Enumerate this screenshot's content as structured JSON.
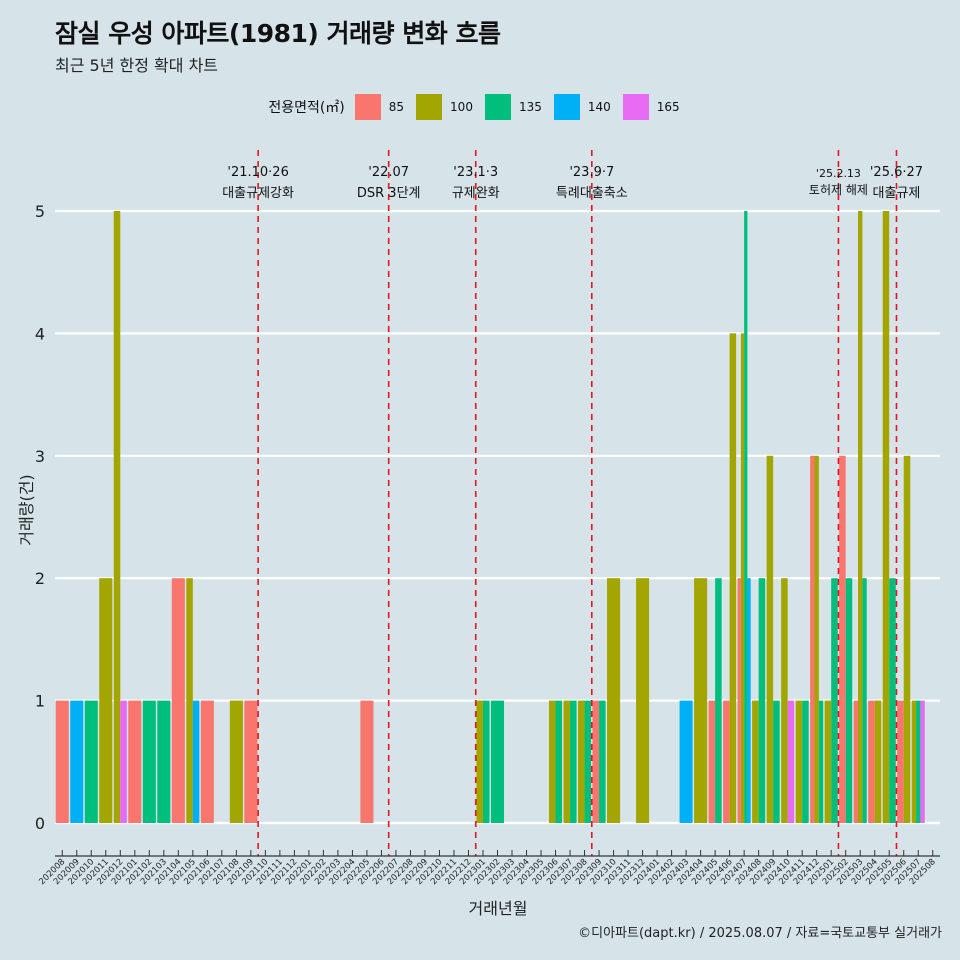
{
  "title": "잠실 우성 아파트(1981) 거래량 변화 흐름",
  "subtitle": "최근 5년 한정 확대 차트",
  "caption": "©디아파트(dapt.kr) / 2025.08.07 / 자료=국토교통부 실거래가",
  "legend": {
    "title": "전용면적(㎡)",
    "items": [
      {
        "label": "85",
        "color": "#f8766d"
      },
      {
        "label": "100",
        "color": "#a3a500"
      },
      {
        "label": "135",
        "color": "#00bf7d"
      },
      {
        "label": "140",
        "color": "#00b0f6"
      },
      {
        "label": "165",
        "color": "#e76bf3"
      }
    ]
  },
  "chart_data": {
    "type": "bar",
    "xlabel": "거래년월",
    "ylabel": "거래량(건)",
    "ylim": [
      0,
      5
    ],
    "yticks": [
      0,
      1,
      2,
      3,
      4,
      5
    ],
    "categories": [
      "202008",
      "202009",
      "202010",
      "202011",
      "202012",
      "202101",
      "202102",
      "202103",
      "202104",
      "202105",
      "202106",
      "202107",
      "202108",
      "202109",
      "202110",
      "202111",
      "202112",
      "202201",
      "202202",
      "202203",
      "202204",
      "202205",
      "202206",
      "202207",
      "202208",
      "202209",
      "202210",
      "202211",
      "202212",
      "202301",
      "202302",
      "202303",
      "202304",
      "202305",
      "202306",
      "202307",
      "202308",
      "202309",
      "202310",
      "202311",
      "202312",
      "202401",
      "202402",
      "202403",
      "202404",
      "202405",
      "202406",
      "202407",
      "202408",
      "202409",
      "202410",
      "202411",
      "202412",
      "202501",
      "202502",
      "202503",
      "202504",
      "202505",
      "202506",
      "202507",
      "202508"
    ],
    "series": [
      {
        "name": "85",
        "values": [
          1,
          0,
          0,
          0,
          0,
          1,
          0,
          0,
          2,
          0,
          1,
          0,
          0,
          1,
          0,
          0,
          0,
          0,
          0,
          0,
          0,
          1,
          0,
          0,
          0,
          0,
          0,
          0,
          0,
          0,
          0,
          0,
          0,
          0,
          0,
          0,
          0,
          1,
          0,
          0,
          0,
          0,
          0,
          0,
          0,
          1,
          1,
          2,
          0,
          0,
          0,
          0,
          3,
          0,
          3,
          1,
          1,
          0,
          1,
          0,
          0
        ]
      },
      {
        "name": "100",
        "values": [
          0,
          0,
          0,
          2,
          5,
          0,
          0,
          0,
          0,
          2,
          0,
          0,
          1,
          0,
          0,
          0,
          0,
          0,
          0,
          0,
          0,
          0,
          0,
          0,
          0,
          0,
          0,
          0,
          0,
          1,
          0,
          0,
          0,
          0,
          1,
          1,
          1,
          0,
          2,
          0,
          2,
          0,
          0,
          0,
          2,
          0,
          4,
          4,
          1,
          3,
          2,
          1,
          3,
          1,
          0,
          5,
          1,
          5,
          3,
          1,
          0
        ]
      },
      {
        "name": "135",
        "values": [
          0,
          0,
          1,
          0,
          0,
          0,
          1,
          1,
          0,
          0,
          0,
          0,
          0,
          0,
          0,
          0,
          0,
          0,
          0,
          0,
          0,
          0,
          0,
          0,
          0,
          0,
          0,
          0,
          0,
          1,
          1,
          0,
          0,
          0,
          1,
          1,
          1,
          1,
          0,
          0,
          0,
          0,
          0,
          0,
          0,
          2,
          0,
          5,
          2,
          1,
          0,
          1,
          1,
          2,
          2,
          2,
          0,
          2,
          0,
          1,
          0
        ]
      },
      {
        "name": "140",
        "values": [
          0,
          1,
          0,
          0,
          0,
          0,
          0,
          0,
          0,
          1,
          0,
          0,
          0,
          0,
          0,
          0,
          0,
          0,
          0,
          0,
          0,
          0,
          0,
          0,
          0,
          0,
          0,
          0,
          0,
          0,
          0,
          0,
          0,
          0,
          0,
          0,
          0,
          0,
          0,
          0,
          0,
          0,
          0,
          1,
          0,
          0,
          0,
          2,
          0,
          0,
          0,
          0,
          0,
          0,
          0,
          0,
          0,
          0,
          0,
          0,
          0
        ]
      },
      {
        "name": "165",
        "values": [
          0,
          0,
          0,
          0,
          1,
          0,
          0,
          0,
          0,
          0,
          0,
          0,
          0,
          0,
          0,
          0,
          0,
          0,
          0,
          0,
          0,
          0,
          0,
          0,
          0,
          0,
          0,
          0,
          0,
          0,
          0,
          0,
          0,
          0,
          0,
          0,
          0,
          0,
          0,
          0,
          0,
          0,
          0,
          0,
          0,
          0,
          0,
          0,
          0,
          0,
          1,
          0,
          0,
          0,
          0,
          0,
          0,
          0,
          0,
          1,
          0
        ]
      }
    ],
    "events": [
      {
        "x": "202110",
        "date": "'21.10·26",
        "label": "대출규제강화"
      },
      {
        "x": "202207",
        "date": "'22.07",
        "label": "DSR 3단계"
      },
      {
        "x": "202301",
        "date": "'23.1·3",
        "label": "규제완화"
      },
      {
        "x": "202309",
        "date": "'23.9·7",
        "label": "특례대출축소"
      },
      {
        "x": "202502",
        "date": "'25.2.13",
        "label": "토허제 해제"
      },
      {
        "x": "202506",
        "date": "'25.6·27",
        "label": "대출규제"
      }
    ],
    "grid": "horizontal",
    "legend_position": "top"
  }
}
